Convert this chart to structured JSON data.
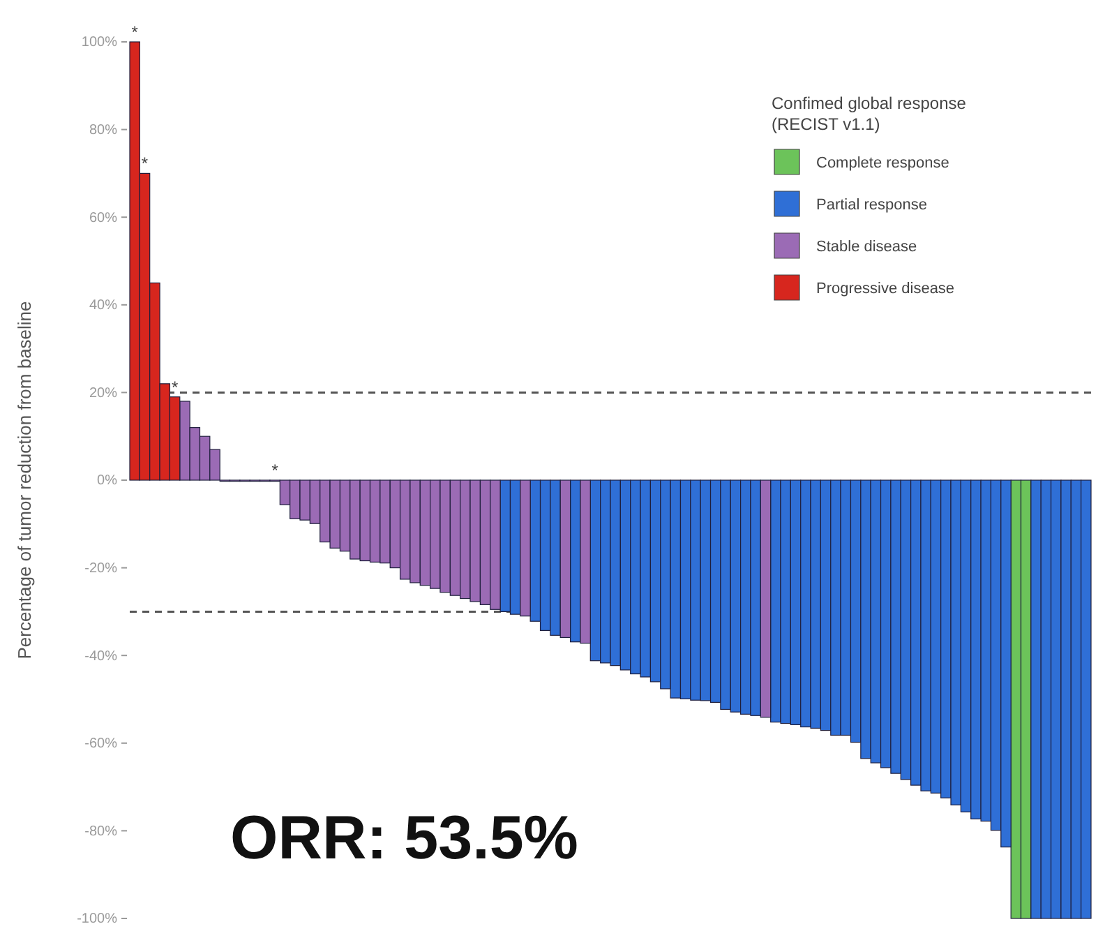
{
  "chart_data": {
    "type": "bar",
    "ylabel": "Percentage of tumor reduction from baseline",
    "legend_title": "Confimed global response\n(RECIST v1.1)",
    "legend": "top right",
    "grid": false,
    "categories": [
      null,
      null,
      null,
      null,
      null,
      null,
      null,
      null,
      null,
      null,
      null,
      null,
      null,
      null,
      null,
      null,
      null,
      null,
      null,
      null,
      null,
      null,
      null,
      null,
      null,
      null,
      null,
      null,
      null,
      null,
      null,
      null,
      null,
      null,
      null,
      null,
      null,
      null,
      null,
      null,
      null,
      null,
      null,
      null,
      null,
      null,
      null,
      null,
      null,
      null,
      null,
      null,
      null,
      null,
      null,
      null,
      null,
      null,
      null,
      null,
      null,
      null,
      null,
      null,
      null,
      null,
      null,
      null,
      null,
      null,
      null,
      null,
      null,
      null,
      null,
      null,
      null,
      null,
      null,
      null,
      null,
      null,
      null,
      null,
      null,
      null,
      null,
      null,
      null,
      null,
      null,
      null,
      null,
      null,
      null,
      null
    ],
    "series": [
      {
        "name": "Complete response",
        "color": "#6cc35a",
        "values": [
          null,
          null,
          null,
          null,
          null,
          null,
          null,
          null,
          null,
          null,
          null,
          null,
          null,
          null,
          null,
          null,
          null,
          null,
          null,
          null,
          null,
          null,
          null,
          null,
          null,
          null,
          null,
          null,
          null,
          null,
          null,
          null,
          null,
          null,
          null,
          null,
          null,
          null,
          null,
          null,
          null,
          null,
          null,
          null,
          null,
          null,
          null,
          null,
          null,
          null,
          null,
          null,
          null,
          null,
          null,
          null,
          null,
          null,
          null,
          null,
          null,
          null,
          null,
          null,
          null,
          null,
          null,
          null,
          null,
          null,
          null,
          null,
          null,
          null,
          null,
          null,
          null,
          null,
          null,
          null,
          null,
          null,
          null,
          null,
          null,
          null,
          null,
          null,
          -100,
          -100,
          null,
          null,
          null,
          null,
          null,
          null
        ]
      },
      {
        "name": "Partial response",
        "color": "#2f6fd6",
        "values": [
          null,
          null,
          null,
          null,
          null,
          null,
          null,
          null,
          null,
          null,
          null,
          null,
          null,
          null,
          null,
          null,
          null,
          null,
          null,
          null,
          null,
          null,
          null,
          null,
          null,
          null,
          null,
          null,
          null,
          null,
          null,
          null,
          null,
          null,
          null,
          null,
          null,
          -30,
          -30.6,
          null,
          -32.2,
          -34.3,
          -35.4,
          null,
          -36.9,
          null,
          -41.2,
          -41.7,
          -42.3,
          -43.3,
          -44.2,
          -44.9,
          -46,
          -47.6,
          -49.7,
          -49.9,
          -50.2,
          -50.3,
          -50.7,
          -52.3,
          -52.9,
          -53.4,
          -53.7,
          null,
          -55.2,
          -55.5,
          -55.8,
          -56.3,
          -56.6,
          -57.1,
          -58.2,
          -58.2,
          -59.8,
          -63.5,
          -64.5,
          -65.6,
          -66.9,
          -68.3,
          -69.6,
          -70.9,
          -71.4,
          -72.5,
          -74.1,
          -75.7,
          -77.3,
          -77.8,
          -79.9,
          -83.7,
          null,
          null,
          -100,
          -100,
          -100,
          -100,
          -100,
          -100
        ]
      },
      {
        "name": "Stable disease",
        "color": "#9b6bb5",
        "values": [
          null,
          null,
          null,
          null,
          null,
          18,
          12,
          10,
          7,
          0,
          0,
          0,
          0,
          0,
          0,
          -5.6,
          -8.8,
          -9.1,
          -9.9,
          -14.1,
          -15.5,
          -16.2,
          -18,
          -18.4,
          -18.7,
          -18.9,
          -20,
          -22.6,
          -23.4,
          -24,
          -24.7,
          -25.6,
          -26.3,
          -27,
          -27.7,
          -28.4,
          -29.5,
          null,
          null,
          -31,
          null,
          null,
          null,
          -35.9,
          null,
          -37.2,
          null,
          null,
          null,
          null,
          null,
          null,
          null,
          null,
          null,
          null,
          null,
          null,
          null,
          null,
          null,
          null,
          null,
          -54.1,
          null,
          null,
          null,
          null,
          null,
          null,
          null,
          null,
          null,
          null,
          null,
          null,
          null,
          null,
          null,
          null,
          null,
          null,
          null,
          null,
          null,
          null,
          null,
          null,
          null,
          null,
          null,
          null,
          null,
          null,
          null,
          null
        ]
      },
      {
        "name": "Progressive disease",
        "color": "#d7261e",
        "values": [
          100,
          70,
          45,
          22,
          19,
          null,
          null,
          null,
          null,
          null,
          null,
          null,
          null,
          null,
          null,
          null,
          null,
          null,
          null,
          null,
          null,
          null,
          null,
          null,
          null,
          null,
          null,
          null,
          null,
          null,
          null,
          null,
          null,
          null,
          null,
          null,
          null,
          null,
          null,
          null,
          null,
          null,
          null,
          null,
          null,
          null,
          null,
          null,
          null,
          null,
          null,
          null,
          null,
          null,
          null,
          null,
          null,
          null,
          null,
          null,
          null,
          null,
          null,
          null,
          null,
          null,
          null,
          null,
          null,
          null,
          null,
          null,
          null,
          null,
          null,
          null,
          null,
          null,
          null,
          null,
          null,
          null,
          null,
          null,
          null,
          null,
          null,
          null,
          null,
          null,
          null,
          null,
          null,
          null,
          null,
          null
        ]
      }
    ],
    "ylim": [
      -100,
      100
    ],
    "yticks": [
      {
        "value": -100,
        "label": "-100%"
      },
      {
        "value": -80,
        "label": "-80%"
      },
      {
        "value": -60,
        "label": "-60%"
      },
      {
        "value": -40,
        "label": "-40%"
      },
      {
        "value": -20,
        "label": "-20%"
      },
      {
        "value": 0,
        "label": "0%"
      },
      {
        "value": 20,
        "label": "20%"
      },
      {
        "value": 40,
        "label": "40%"
      },
      {
        "value": 60,
        "label": "60%"
      },
      {
        "value": 80,
        "label": "80%"
      },
      {
        "value": 100,
        "label": "100%"
      }
    ],
    "ref_lines": [
      {
        "axis": "y",
        "value": 20,
        "color": "#555555",
        "line_style": "dashed"
      },
      {
        "axis": "y",
        "value": -30,
        "color": "#555555",
        "line_style": "dashed"
      }
    ],
    "annotations": [
      {
        "text": "*",
        "y": 100
      },
      {
        "text": "*",
        "y": 70
      },
      {
        "text": "*",
        "y": 19
      },
      {
        "text": "*",
        "y": 0
      },
      "ORR: 53.5%"
    ]
  }
}
